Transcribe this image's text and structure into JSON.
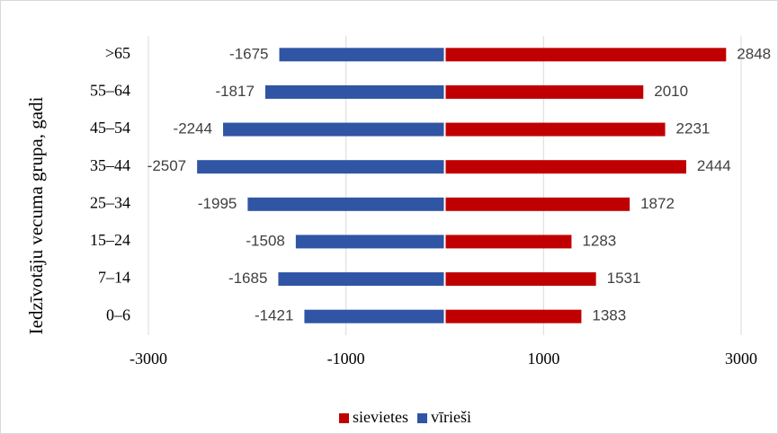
{
  "chart_data": {
    "type": "diverging-bar",
    "y_label": "Iedzīvotāju vecuma grupa, gadi",
    "categories": [
      ">65",
      "55–64",
      "45–54",
      "35–44",
      "25–34",
      "15–24",
      "7–14",
      "0–6"
    ],
    "series": [
      {
        "name": "sievietes",
        "color": "#c00000",
        "values": [
          2848,
          2010,
          2231,
          2444,
          1872,
          1283,
          1531,
          1383
        ]
      },
      {
        "name": "vīrieši",
        "color": "#2f55a4",
        "values": [
          -1675,
          -1817,
          -2244,
          -2507,
          -1995,
          -1508,
          -1685,
          -1421
        ]
      }
    ],
    "xlim": [
      -3000,
      3000
    ],
    "xticks": [
      -3000,
      -1000,
      1000,
      3000
    ],
    "grid": true,
    "legend": "bottom"
  }
}
